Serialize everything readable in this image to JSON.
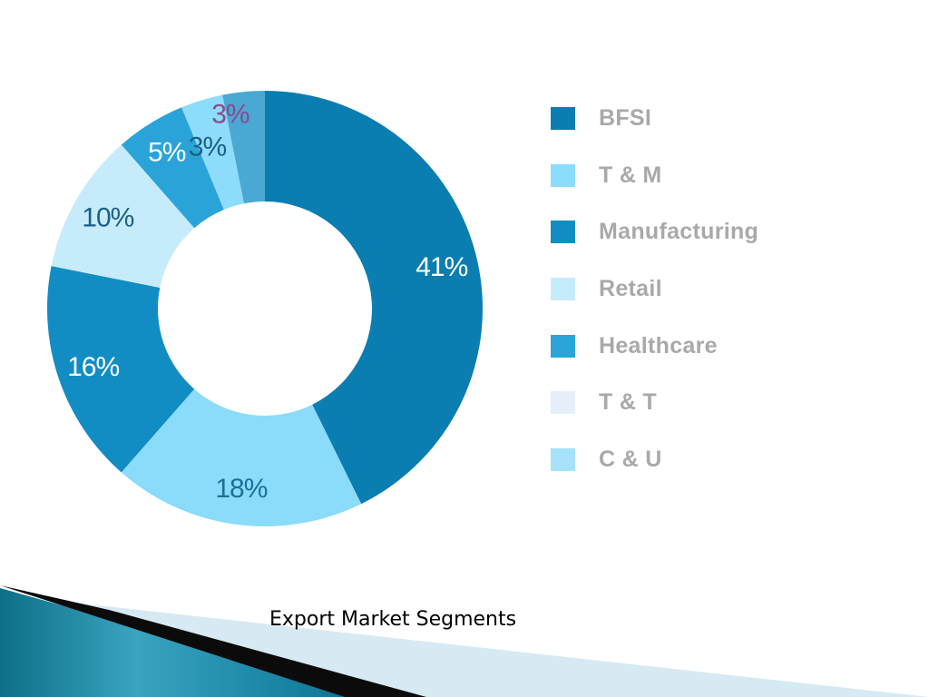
{
  "chart_data": {
    "type": "pie",
    "donut": true,
    "title": "",
    "categories": [
      "BFSI",
      "T & M",
      "Manufacturing",
      "Retail",
      "Healthcare",
      "T & T",
      "C & U"
    ],
    "values": [
      41,
      18,
      16,
      10,
      5,
      3,
      3
    ],
    "labels": [
      "41%",
      "18%",
      "16%",
      "10%",
      "5%",
      "3%",
      "3%"
    ],
    "colors": [
      "#0a7db1",
      "#8bdcfb",
      "#128dc4",
      "#c6ecfb",
      "#2aa4d8",
      "#8edcfb",
      "#4aa9d3"
    ],
    "label_colors": [
      "#ffffff",
      "#1d6f9a",
      "#ffffff",
      "#1d5f86",
      "#ffffff",
      "#1d5f86",
      "#8a4a8f"
    ],
    "legend_position": "right",
    "legend": [
      {
        "label": "BFSI",
        "color": "#0a7db1"
      },
      {
        "label": "T & M",
        "color": "#8bdcfb"
      },
      {
        "label": "Manufacturing",
        "color": "#128dc4"
      },
      {
        "label": "Retail",
        "color": "#c6ecfb"
      },
      {
        "label": "Healthcare",
        "color": "#2aa4d8"
      },
      {
        "label": "T & T",
        "color": "#e4effa"
      },
      {
        "label": "C & U",
        "color": "#a6e2fa"
      }
    ]
  },
  "caption": "Export Market Segments"
}
